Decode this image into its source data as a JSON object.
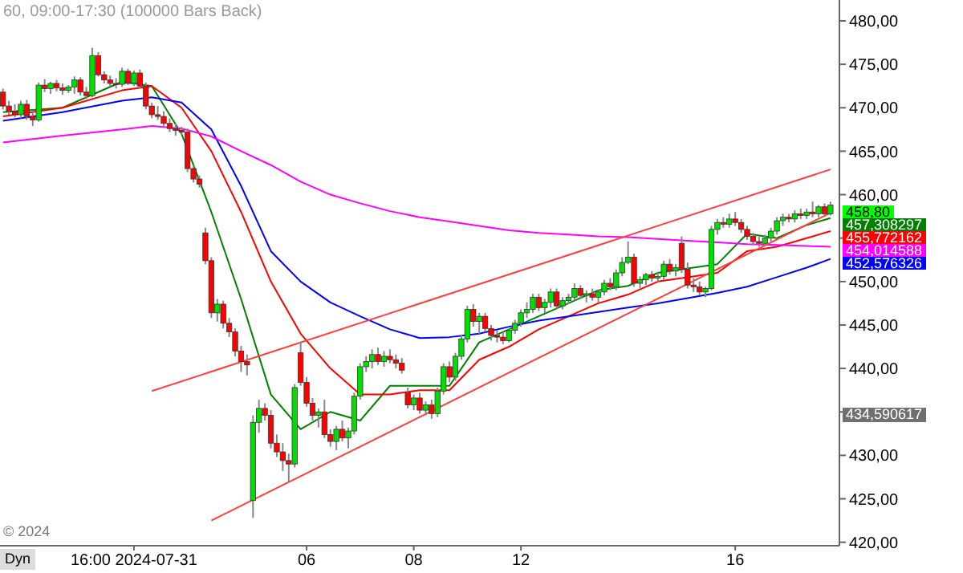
{
  "chart_data": {
    "type": "candlestick",
    "title": "60, 09:00-17:30 (100000 Bars Back)",
    "categories": [
      null,
      null,
      null,
      null,
      null,
      null,
      null,
      null,
      null,
      null,
      null,
      null,
      null,
      null,
      null,
      null,
      null,
      null,
      null,
      null,
      null,
      null,
      "16:00 2024-07-31",
      null,
      null,
      null,
      null,
      null,
      null,
      null,
      null,
      null,
      null,
      null,
      null,
      null,
      null,
      null,
      null,
      null,
      null,
      null,
      null,
      null,
      null,
      null,
      null,
      null,
      null,
      null,
      null,
      "06",
      null,
      null,
      null,
      null,
      null,
      null,
      null,
      null,
      null,
      null,
      null,
      null,
      null,
      null,
      null,
      null,
      null,
      "08",
      null,
      null,
      null,
      null,
      null,
      null,
      null,
      null,
      null,
      null,
      null,
      null,
      null,
      null,
      null,
      null,
      null,
      "12",
      null,
      null,
      null,
      null,
      null,
      null,
      null,
      null,
      null,
      null,
      null,
      null,
      null,
      null,
      null,
      null,
      null,
      null,
      null,
      null,
      null,
      null,
      null,
      null,
      null,
      null,
      null,
      null,
      null,
      null,
      null,
      null,
      null,
      null,
      null,
      "16",
      null,
      null,
      null,
      null,
      null,
      null,
      null,
      null,
      null,
      null,
      null,
      null,
      null,
      null,
      null,
      null
    ],
    "ohlc": [
      [
        471.8,
        472.2,
        469.8,
        470.2
      ],
      [
        470.2,
        470.8,
        469.2,
        469.6
      ],
      [
        469.6,
        470.4,
        468.9,
        469.2
      ],
      [
        469.2,
        470.8,
        468.8,
        470.4
      ],
      [
        470.4,
        470.9,
        468.6,
        469
      ],
      [
        469,
        469.4,
        467.9,
        468.6
      ],
      [
        468.6,
        472.9,
        468.4,
        472.6
      ],
      [
        472.6,
        473.3,
        471.8,
        472.2
      ],
      [
        472.2,
        473,
        471.6,
        472.8
      ],
      [
        472.8,
        473.2,
        471.9,
        472.3
      ],
      [
        472.3,
        472.8,
        471.5,
        472
      ],
      [
        472,
        472.6,
        471.7,
        472.4
      ],
      [
        472.4,
        473.6,
        471.6,
        473.2
      ],
      [
        473.2,
        473.5,
        471.4,
        471.8
      ],
      [
        471.8,
        472.4,
        471,
        471.4
      ],
      [
        471.4,
        476.9,
        471.2,
        476
      ],
      [
        476,
        476.4,
        473.6,
        473.8
      ],
      [
        473.8,
        474.2,
        472.8,
        473.2
      ],
      [
        473.2,
        473.7,
        472.4,
        472.8
      ],
      [
        472.8,
        473.4,
        472.2,
        472.7
      ],
      [
        472.7,
        474.6,
        472.4,
        474.2
      ],
      [
        474.2,
        474.5,
        472.6,
        472.8
      ],
      [
        472.8,
        474.3,
        472.5,
        474
      ],
      [
        474,
        474.4,
        472.2,
        472.5
      ],
      [
        472.5,
        472.9,
        469.8,
        470.2
      ],
      [
        470.2,
        470.6,
        468.8,
        469.2
      ],
      [
        469.2,
        470.2,
        468.6,
        469
      ],
      [
        469,
        469.6,
        467.8,
        468.2
      ],
      [
        468.2,
        468.8,
        467.2,
        467.6
      ],
      [
        467.6,
        468.2,
        466.8,
        467.4
      ],
      [
        467.4,
        467.8,
        466.9,
        467.2
      ],
      [
        467.2,
        467.6,
        462.6,
        463
      ],
      [
        463,
        463.4,
        461.4,
        461.8
      ],
      [
        461.8,
        462.2,
        460.8,
        461.2
      ],
      [
        455.6,
        456.2,
        452,
        452.4
      ],
      [
        452.4,
        452.8,
        445.8,
        446.4
      ],
      [
        446.4,
        448,
        445.4,
        447.4
      ],
      [
        447.4,
        447.8,
        444.6,
        445.2
      ],
      [
        445.2,
        445.8,
        443.6,
        444.2
      ],
      [
        444.2,
        444.6,
        441.4,
        442
      ],
      [
        442,
        442.6,
        439.6,
        440.8
      ],
      [
        440.8,
        441.6,
        439.2,
        440.4
      ],
      [
        424.8,
        434.6,
        422.8,
        433.8
      ],
      [
        433.8,
        436.4,
        432.6,
        435.4
      ],
      [
        435.4,
        436,
        434,
        434.6
      ],
      [
        434.6,
        435.2,
        430.8,
        431.4
      ],
      [
        431.4,
        432.4,
        429.8,
        430.4
      ],
      [
        430.4,
        431.4,
        428.2,
        429.4
      ],
      [
        429.4,
        430.2,
        426.9,
        429
      ],
      [
        429,
        438.2,
        428.6,
        437.8
      ],
      [
        441.8,
        443,
        438,
        438.4
      ],
      [
        438.4,
        439,
        435.6,
        436
      ],
      [
        436,
        436.6,
        434,
        434.6
      ],
      [
        434.6,
        435.4,
        433.2,
        435
      ],
      [
        435,
        436.4,
        432,
        432.4
      ],
      [
        432.4,
        433,
        431,
        431.6
      ],
      [
        431.6,
        433.4,
        430.6,
        433
      ],
      [
        433,
        434,
        431.6,
        432
      ],
      [
        432,
        433.2,
        430.8,
        432.8
      ],
      [
        432.8,
        437.2,
        432.4,
        436.8
      ],
      [
        436.8,
        440.6,
        436.4,
        440.2
      ],
      [
        440.2,
        441.4,
        439.6,
        440.8
      ],
      [
        440.8,
        442.2,
        440,
        441.6
      ],
      [
        441.6,
        442.4,
        440.4,
        440.8
      ],
      [
        440.8,
        442,
        440.2,
        441.4
      ],
      [
        441.4,
        442.2,
        440.6,
        441
      ],
      [
        441,
        441.6,
        440,
        440.6
      ],
      [
        440.6,
        441.2,
        439.4,
        439.8
      ],
      [
        437.2,
        437.8,
        435.4,
        435.8
      ],
      [
        435.8,
        437,
        435.2,
        436.6
      ],
      [
        436.6,
        437.2,
        434.8,
        435.2
      ],
      [
        435.2,
        436.2,
        434.6,
        435.8
      ],
      [
        435.8,
        436.4,
        434.2,
        434.8
      ],
      [
        434.8,
        437.8,
        434.4,
        437.4
      ],
      [
        437.4,
        440.6,
        437,
        440.2
      ],
      [
        440.2,
        440.8,
        438.4,
        439
      ],
      [
        439,
        441.8,
        438.6,
        441.4
      ],
      [
        441.4,
        443.8,
        441,
        443.4
      ],
      [
        443.4,
        447.2,
        443,
        446.8
      ],
      [
        446.8,
        447.4,
        444.8,
        445.4
      ],
      [
        445.4,
        446.4,
        444,
        446
      ],
      [
        446,
        446.4,
        444.2,
        444.6
      ],
      [
        444.6,
        445,
        443.2,
        443.8
      ],
      [
        443.8,
        444.4,
        443,
        443.6
      ],
      [
        443.6,
        444.2,
        442.8,
        443.2
      ],
      [
        443.2,
        444.6,
        443,
        444.4
      ],
      [
        444.4,
        445.6,
        444,
        445.2
      ],
      [
        445.2,
        446.8,
        444.8,
        446.4
      ],
      [
        446.4,
        447.6,
        445.8,
        446.8
      ],
      [
        446.8,
        448.6,
        446.4,
        448.2
      ],
      [
        448.2,
        448.6,
        446.6,
        447
      ],
      [
        447,
        448,
        446.4,
        447.6
      ],
      [
        447.6,
        449.2,
        447,
        448.8
      ],
      [
        448.8,
        449.2,
        446.8,
        447.2
      ],
      [
        447.2,
        448.2,
        446.8,
        447.8
      ],
      [
        447.8,
        448.6,
        447.4,
        448.2
      ],
      [
        448.2,
        449.8,
        447.8,
        449.2
      ],
      [
        449.2,
        449.6,
        448,
        448.4
      ],
      [
        448.4,
        449,
        447.6,
        448.6
      ],
      [
        448.6,
        449.2,
        447.8,
        448.2
      ],
      [
        448.2,
        449,
        447.6,
        448.8
      ],
      [
        448.8,
        450.2,
        448.4,
        449.8
      ],
      [
        449.8,
        450.4,
        449,
        449.4
      ],
      [
        449.4,
        451.4,
        449,
        451
      ],
      [
        451,
        452.8,
        450.6,
        452.2
      ],
      [
        452.2,
        454.6,
        452,
        452.8
      ],
      [
        452.8,
        453.2,
        449.4,
        449.8
      ],
      [
        449.8,
        450.6,
        449.2,
        450.2
      ],
      [
        450.2,
        451,
        449.6,
        450.8
      ],
      [
        450.8,
        451.2,
        450,
        450.4
      ],
      [
        450.4,
        451,
        450,
        450.6
      ],
      [
        450.6,
        452.4,
        450.2,
        452
      ],
      [
        452,
        452.6,
        450.8,
        451.2
      ],
      [
        451.2,
        452,
        450.6,
        451.6
      ],
      [
        454.4,
        455.2,
        451,
        451.4
      ],
      [
        451.4,
        452.2,
        449.2,
        449.6
      ],
      [
        449.6,
        450.4,
        448.8,
        449.4
      ],
      [
        449.4,
        450,
        448.4,
        448.8
      ],
      [
        448.8,
        449.4,
        448.2,
        449.2
      ],
      [
        449.2,
        456.4,
        449,
        456
      ],
      [
        456,
        457.2,
        455.4,
        456.8
      ],
      [
        456.8,
        457.4,
        456.2,
        456.6
      ],
      [
        456.6,
        457.8,
        456.2,
        457.2
      ],
      [
        457.2,
        458,
        456.4,
        456.8
      ],
      [
        456.8,
        457.2,
        455.6,
        456
      ],
      [
        456,
        456.4,
        454.8,
        455.2
      ],
      [
        455.2,
        455.6,
        454.2,
        454.6
      ],
      [
        454.6,
        455.2,
        454,
        454.4
      ],
      [
        454.4,
        455.4,
        454.2,
        455
      ],
      [
        455,
        456.2,
        454.6,
        455.8
      ],
      [
        455.8,
        457.4,
        455.4,
        457
      ],
      [
        457,
        457.8,
        456.4,
        457.4
      ],
      [
        457.4,
        457.8,
        456.8,
        457.2
      ],
      [
        457.2,
        458.2,
        456.8,
        457.8
      ],
      [
        457.8,
        458.4,
        457.2,
        457.6
      ],
      [
        457.6,
        458.4,
        457.2,
        458
      ],
      [
        458,
        459.2,
        457.4,
        457.8
      ],
      [
        457.8,
        458.8,
        457.4,
        458.6
      ],
      [
        458.6,
        459,
        457.6,
        457.8
      ],
      [
        457.8,
        459.2,
        457.6,
        458.8
      ]
    ],
    "series": [
      {
        "type": "line",
        "color": "#008000",
        "values": [
          469.5,
          null,
          null,
          null,
          null,
          null,
          null,
          null,
          null,
          null,
          470,
          null,
          null,
          null,
          null,
          null,
          null,
          null,
          null,
          null,
          473,
          null,
          null,
          null,
          null,
          472.5,
          null,
          null,
          null,
          null,
          467,
          null,
          null,
          null,
          null,
          458,
          null,
          null,
          null,
          null,
          448,
          null,
          null,
          null,
          null,
          437,
          null,
          null,
          null,
          null,
          433,
          null,
          null,
          null,
          null,
          435,
          null,
          null,
          null,
          null,
          434,
          null,
          null,
          null,
          null,
          438,
          null,
          null,
          null,
          null,
          438,
          null,
          null,
          null,
          null,
          438,
          null,
          null,
          null,
          null,
          443,
          null,
          null,
          null,
          null,
          444.5,
          null,
          null,
          null,
          null,
          446,
          null,
          null,
          null,
          null,
          447.5,
          null,
          null,
          null,
          null,
          449,
          null,
          null,
          null,
          null,
          449.5,
          null,
          null,
          null,
          null,
          451,
          null,
          null,
          null,
          null,
          451.5,
          null,
          null,
          null,
          null,
          452,
          null,
          null,
          null,
          null,
          455.5,
          null,
          null,
          null,
          null,
          455,
          null,
          null,
          null,
          null,
          456.5,
          null,
          null,
          null,
          457.3
        ]
      },
      {
        "type": "line",
        "color": "#ff0000",
        "values": [
          469,
          null,
          null,
          null,
          null,
          null,
          null,
          null,
          null,
          null,
          470,
          null,
          null,
          null,
          null,
          null,
          null,
          null,
          null,
          null,
          472,
          null,
          null,
          null,
          null,
          472.5,
          null,
          null,
          null,
          null,
          470,
          null,
          null,
          null,
          null,
          465,
          null,
          null,
          null,
          null,
          458,
          null,
          null,
          null,
          null,
          450,
          null,
          null,
          null,
          null,
          444,
          null,
          null,
          null,
          null,
          440,
          null,
          null,
          null,
          null,
          437,
          null,
          null,
          null,
          null,
          437,
          null,
          null,
          null,
          null,
          437.5,
          null,
          null,
          null,
          null,
          437.5,
          null,
          null,
          null,
          null,
          441,
          null,
          null,
          null,
          null,
          442.5,
          null,
          null,
          null,
          null,
          444.5,
          null,
          null,
          null,
          null,
          446,
          null,
          null,
          null,
          null,
          447.5,
          null,
          null,
          null,
          null,
          448.5,
          null,
          null,
          null,
          null,
          450,
          null,
          null,
          null,
          null,
          450.5,
          null,
          null,
          null,
          null,
          451,
          null,
          null,
          null,
          null,
          453.5,
          null,
          null,
          null,
          null,
          454,
          null,
          null,
          null,
          null,
          455,
          null,
          null,
          null,
          455.8
        ]
      },
      {
        "type": "line",
        "color": "#0000ff",
        "values": [
          468.5,
          null,
          null,
          null,
          null,
          null,
          null,
          null,
          null,
          null,
          469.5,
          null,
          null,
          null,
          null,
          null,
          null,
          null,
          null,
          null,
          470.8,
          null,
          null,
          null,
          null,
          471.2,
          null,
          null,
          null,
          null,
          470.6,
          null,
          null,
          null,
          null,
          467.5,
          null,
          null,
          null,
          null,
          461,
          null,
          null,
          null,
          null,
          453.5,
          null,
          null,
          null,
          null,
          450,
          null,
          null,
          null,
          null,
          447.6,
          null,
          null,
          null,
          null,
          446,
          null,
          null,
          null,
          null,
          444.5,
          null,
          null,
          null,
          null,
          443.5,
          null,
          null,
          null,
          null,
          443.6,
          null,
          null,
          null,
          null,
          444,
          null,
          null,
          null,
          null,
          444.8,
          null,
          null,
          null,
          null,
          445.5,
          null,
          null,
          null,
          null,
          446,
          null,
          null,
          null,
          null,
          446.5,
          null,
          null,
          null,
          null,
          447,
          null,
          null,
          null,
          null,
          447.5,
          null,
          null,
          null,
          null,
          448.1,
          null,
          null,
          null,
          null,
          448.7,
          null,
          null,
          null,
          null,
          449.4,
          null,
          null,
          null,
          null,
          450.5,
          null,
          null,
          null,
          null,
          451.6,
          null,
          null,
          null,
          452.6
        ]
      },
      {
        "type": "line",
        "color": "#ff00ff",
        "values": [
          466,
          null,
          null,
          null,
          null,
          null,
          null,
          null,
          null,
          null,
          466.8,
          null,
          null,
          null,
          null,
          null,
          null,
          null,
          null,
          null,
          467.5,
          null,
          null,
          null,
          null,
          467.9,
          null,
          null,
          null,
          null,
          467.6,
          null,
          null,
          null,
          null,
          466.7,
          null,
          null,
          null,
          null,
          465,
          null,
          null,
          null,
          null,
          463.4,
          null,
          null,
          null,
          null,
          461.5,
          null,
          null,
          null,
          null,
          460,
          null,
          null,
          null,
          null,
          459,
          null,
          null,
          null,
          null,
          458.1,
          null,
          null,
          null,
          null,
          457.4,
          null,
          null,
          null,
          null,
          456.9,
          null,
          null,
          null,
          null,
          456.4,
          null,
          null,
          null,
          null,
          455.9,
          null,
          null,
          null,
          null,
          455.6,
          null,
          null,
          null,
          null,
          455.4,
          null,
          null,
          null,
          null,
          455.2,
          null,
          null,
          null,
          null,
          455.1,
          null,
          null,
          null,
          null,
          454.9,
          null,
          null,
          null,
          null,
          454.7,
          null,
          null,
          null,
          null,
          454.5,
          null,
          null,
          null,
          null,
          454.3,
          null,
          null,
          null,
          null,
          454.2,
          null,
          null,
          null,
          null,
          454.1,
          null,
          null,
          null,
          454
        ]
      },
      {
        "type": "line",
        "color": "#ff4040",
        "values": [
          null,
          null,
          null,
          null,
          null,
          null,
          null,
          null,
          null,
          null,
          null,
          null,
          null,
          null,
          null,
          null,
          null,
          null,
          null,
          null,
          null,
          null,
          null,
          null,
          null,
          437.4,
          null,
          null,
          null,
          null,
          null,
          null,
          null,
          null,
          null,
          null,
          null,
          null,
          null,
          null,
          null,
          null,
          null,
          null,
          null,
          null,
          null,
          null,
          null,
          null,
          null,
          null,
          null,
          null,
          null,
          null,
          null,
          null,
          null,
          null,
          null,
          null,
          null,
          null,
          null,
          null,
          null,
          null,
          null,
          null,
          null,
          null,
          null,
          null,
          null,
          null,
          null,
          null,
          null,
          null,
          null,
          null,
          null,
          null,
          null,
          null,
          null,
          null,
          null,
          null,
          null,
          null,
          null,
          null,
          null,
          null,
          null,
          null,
          null,
          null,
          null,
          null,
          null,
          null,
          null,
          null,
          null,
          null,
          null,
          null,
          null,
          null,
          null,
          null,
          null,
          null,
          null,
          null,
          null,
          null,
          null,
          null,
          null,
          null,
          null,
          null,
          null,
          null,
          null,
          null,
          null,
          null,
          null,
          null,
          null,
          null,
          null,
          null,
          null,
          462.9
        ]
      },
      {
        "type": "line",
        "color": "#ff4040",
        "values": [
          null,
          null,
          null,
          null,
          null,
          null,
          null,
          null,
          null,
          null,
          null,
          null,
          null,
          null,
          null,
          null,
          null,
          null,
          null,
          null,
          null,
          null,
          null,
          null,
          null,
          null,
          null,
          null,
          null,
          null,
          null,
          null,
          null,
          null,
          null,
          422.5,
          null,
          null,
          null,
          null,
          null,
          null,
          null,
          null,
          null,
          null,
          null,
          null,
          null,
          null,
          null,
          null,
          null,
          null,
          null,
          null,
          null,
          null,
          null,
          null,
          null,
          null,
          null,
          null,
          null,
          null,
          null,
          null,
          null,
          null,
          null,
          null,
          null,
          null,
          null,
          null,
          null,
          null,
          null,
          null,
          null,
          null,
          null,
          null,
          null,
          null,
          null,
          null,
          null,
          null,
          null,
          null,
          null,
          null,
          null,
          null,
          null,
          null,
          null,
          null,
          null,
          null,
          null,
          null,
          null,
          null,
          null,
          null,
          null,
          null,
          null,
          null,
          null,
          null,
          null,
          null,
          null,
          null,
          null,
          null,
          null,
          null,
          null,
          null,
          null,
          null,
          null,
          null,
          null,
          null,
          null,
          null,
          null,
          null,
          null,
          null,
          null,
          null,
          null,
          457.9
        ]
      }
    ],
    "ylim": [
      419.6,
      482.4
    ],
    "yticks": [
      {
        "value": 420,
        "label": "420,00"
      },
      {
        "value": 425,
        "label": "425,00"
      },
      {
        "value": 430,
        "label": "430,00"
      },
      {
        "value": 435,
        "label": null
      },
      {
        "value": 440,
        "label": "440,00"
      },
      {
        "value": 445,
        "label": "445,00"
      },
      {
        "value": 450,
        "label": "450,00"
      },
      {
        "value": 455,
        "label": null
      },
      {
        "value": 460,
        "label": "460,00"
      },
      {
        "value": 465,
        "label": "465,00"
      },
      {
        "value": 470,
        "label": "470,00"
      },
      {
        "value": 475,
        "label": "475,00"
      },
      {
        "value": 480,
        "label": "480,00"
      }
    ],
    "annotations": [
      "458,80",
      "457,308297",
      "455,772162",
      "454,014588",
      "452,576326",
      "434,590617",
      "© 2024",
      "Dyn"
    ]
  }
}
